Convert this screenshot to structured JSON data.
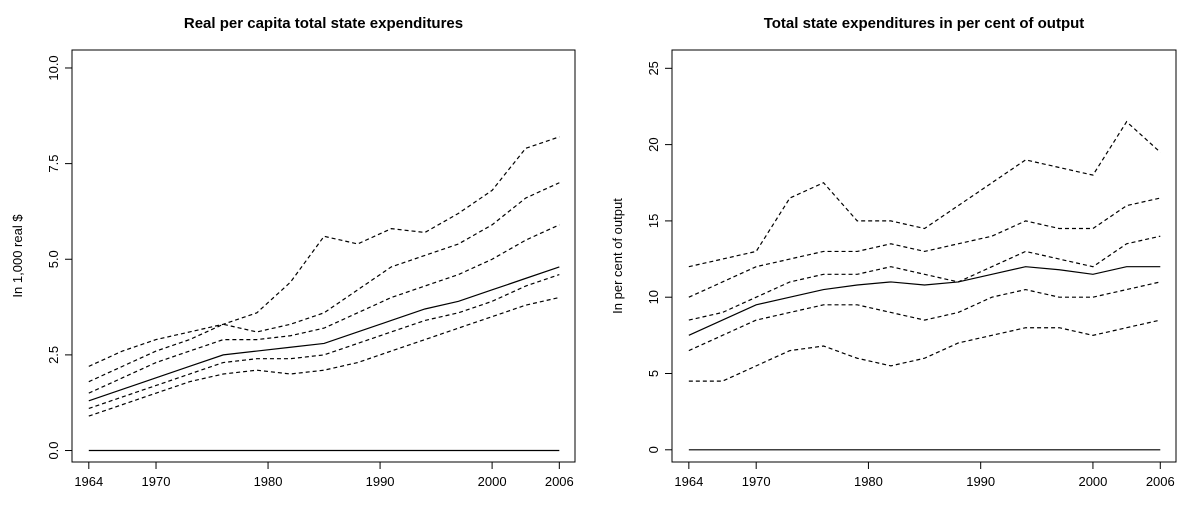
{
  "chart_data": [
    {
      "type": "line",
      "title": "Real per capita total state expenditures",
      "ylabel": "In 1,000 real $",
      "x": [
        1964,
        1967,
        1970,
        1973,
        1976,
        1979,
        1982,
        1985,
        1988,
        1991,
        1994,
        1997,
        2000,
        2003,
        2006
      ],
      "xlim": [
        1962.5,
        2007.4
      ],
      "xticks": [
        1964,
        1970,
        1980,
        1990,
        2000,
        2006
      ],
      "ylim": [
        -0.3,
        10.47
      ],
      "yticks": [
        {
          "value": 0,
          "label": "0.0"
        },
        {
          "value": 2.5,
          "label": "2.5"
        },
        {
          "value": 5,
          "label": "5.0"
        },
        {
          "value": 7.5,
          "label": "7.5"
        },
        {
          "value": 10,
          "label": "10.0"
        }
      ],
      "series": [
        {
          "color": "#000000",
          "linestyle": "dashed",
          "values": [
            2.2,
            2.6,
            2.9,
            3.1,
            3.3,
            3.6,
            4.4,
            5.6,
            5.4,
            5.8,
            5.7,
            6.2,
            6.8,
            7.9,
            8.2
          ]
        },
        {
          "color": "#000000",
          "linestyle": "dashed",
          "values": [
            1.8,
            2.2,
            2.6,
            2.9,
            3.3,
            3.1,
            3.3,
            3.6,
            4.2,
            4.8,
            5.1,
            5.4,
            5.9,
            6.6,
            7.0
          ]
        },
        {
          "color": "#000000",
          "linestyle": "dashed",
          "values": [
            1.5,
            1.9,
            2.3,
            2.6,
            2.9,
            2.9,
            3.0,
            3.2,
            3.6,
            4.0,
            4.3,
            4.6,
            5.0,
            5.5,
            5.9
          ]
        },
        {
          "color": "#000000",
          "linestyle": "dashed",
          "values": [
            1.1,
            1.4,
            1.7,
            2.0,
            2.3,
            2.4,
            2.4,
            2.5,
            2.8,
            3.1,
            3.4,
            3.6,
            3.9,
            4.3,
            4.6
          ]
        },
        {
          "color": "#000000",
          "linestyle": "dashed",
          "values": [
            0.9,
            1.2,
            1.5,
            1.8,
            2.0,
            2.1,
            2.0,
            2.1,
            2.3,
            2.6,
            2.9,
            3.2,
            3.5,
            3.8,
            4.0
          ]
        },
        {
          "color": "#000000",
          "linestyle": "solid",
          "values": [
            1.3,
            1.6,
            1.9,
            2.2,
            2.5,
            2.6,
            2.7,
            2.8,
            3.1,
            3.4,
            3.7,
            3.9,
            4.2,
            4.5,
            4.8
          ]
        },
        {
          "color": "#000000",
          "linestyle": "solid",
          "values": [
            0,
            0,
            0,
            0,
            0,
            0,
            0,
            0,
            0,
            0,
            0,
            0,
            0,
            0,
            0
          ]
        }
      ]
    },
    {
      "type": "line",
      "title": "Total state expenditures in per cent of output",
      "ylabel": "In per cent of output",
      "x": [
        1964,
        1967,
        1970,
        1973,
        1976,
        1979,
        1982,
        1985,
        1988,
        1991,
        1994,
        1997,
        2000,
        2003,
        2006
      ],
      "xlim": [
        1962.5,
        2007.4
      ],
      "xticks": [
        1964,
        1970,
        1980,
        1990,
        2000,
        2006
      ],
      "ylim": [
        -0.8,
        26.2
      ],
      "yticks": [
        0,
        5,
        10,
        15,
        20,
        25
      ],
      "series": [
        {
          "color": "#000000",
          "linestyle": "dashed",
          "values": [
            12,
            12.5,
            13,
            16.5,
            17.5,
            15,
            15,
            14.5,
            16,
            17.5,
            19,
            18.5,
            18,
            21.5,
            19.5
          ]
        },
        {
          "color": "#000000",
          "linestyle": "dashed",
          "values": [
            10,
            11,
            12,
            12.5,
            13,
            13,
            13.5,
            13,
            13.5,
            14,
            15,
            14.5,
            14.5,
            16,
            16.5
          ]
        },
        {
          "color": "#000000",
          "linestyle": "dashed",
          "values": [
            8.5,
            9,
            10,
            11,
            11.5,
            11.5,
            12,
            11.5,
            11,
            12,
            13,
            12.5,
            12,
            13.5,
            14
          ]
        },
        {
          "color": "#000000",
          "linestyle": "dashed",
          "values": [
            6.5,
            7.5,
            8.5,
            9,
            9.5,
            9.5,
            9,
            8.5,
            9,
            10,
            10.5,
            10,
            10,
            10.5,
            11
          ]
        },
        {
          "color": "#000000",
          "linestyle": "dashed",
          "values": [
            4.5,
            4.5,
            5.5,
            6.5,
            6.8,
            6,
            5.5,
            6,
            7,
            7.5,
            8,
            8,
            7.5,
            8,
            8.5
          ]
        },
        {
          "color": "#000000",
          "linestyle": "solid",
          "values": [
            7.5,
            8.5,
            9.5,
            10,
            10.5,
            10.8,
            11,
            10.8,
            11,
            11.5,
            12,
            11.8,
            11.5,
            12,
            12
          ]
        },
        {
          "color": "#000000",
          "linestyle": "solid",
          "values": [
            0,
            0,
            0,
            0,
            0,
            0,
            0,
            0,
            0,
            0,
            0,
            0,
            0,
            0,
            0
          ]
        }
      ]
    }
  ]
}
